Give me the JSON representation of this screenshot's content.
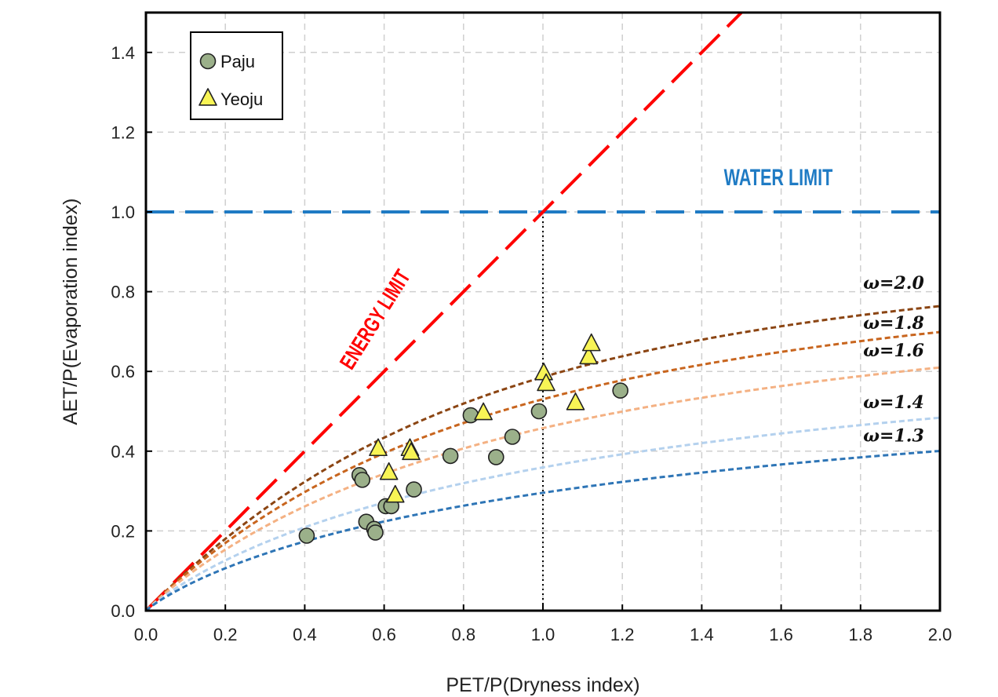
{
  "chart_data": {
    "type": "scatter",
    "xlabel": "PET/P(Dryness index)",
    "ylabel": "AET/P(Evaporation index)",
    "xlim": [
      0,
      2.0
    ],
    "ylim": [
      0,
      1.5
    ],
    "xticks": [
      "0.0",
      "0.2",
      "0.4",
      "0.6",
      "0.8",
      "1.0",
      "1.2",
      "1.4",
      "1.6",
      "1.8",
      "2.0"
    ],
    "yticks": [
      "0.0",
      "0.2",
      "0.4",
      "0.6",
      "0.8",
      "1.0",
      "1.2",
      "1.4"
    ],
    "grid": true,
    "legend_position": "top-left",
    "series": [
      {
        "name": "Paju",
        "marker": "circle",
        "color": "#9bb08a",
        "points": [
          [
            0.405,
            0.188
          ],
          [
            0.538,
            0.34
          ],
          [
            0.545,
            0.328
          ],
          [
            0.555,
            0.223
          ],
          [
            0.575,
            0.205
          ],
          [
            0.578,
            0.196
          ],
          [
            0.604,
            0.262
          ],
          [
            0.618,
            0.262
          ],
          [
            0.675,
            0.304
          ],
          [
            0.767,
            0.388
          ],
          [
            0.818,
            0.49
          ],
          [
            0.882,
            0.385
          ],
          [
            0.923,
            0.436
          ],
          [
            0.99,
            0.5
          ],
          [
            1.195,
            0.552
          ]
        ]
      },
      {
        "name": "Yeoju",
        "marker": "triangle",
        "color": "#f8f455",
        "points": [
          [
            0.585,
            0.405
          ],
          [
            0.612,
            0.345
          ],
          [
            0.628,
            0.288
          ],
          [
            0.665,
            0.405
          ],
          [
            0.668,
            0.395
          ],
          [
            0.85,
            0.495
          ],
          [
            1.002,
            0.595
          ],
          [
            1.008,
            0.568
          ],
          [
            1.082,
            0.52
          ],
          [
            1.115,
            0.635
          ],
          [
            1.122,
            0.668
          ]
        ]
      }
    ],
    "curves": [
      {
        "omega": 2.0,
        "label": "ω=2.0",
        "color": "#8b4513"
      },
      {
        "omega": 1.8,
        "label": "ω=1.8",
        "color": "#c8651e"
      },
      {
        "omega": 1.6,
        "label": "ω=1.6",
        "color": "#f4b183"
      },
      {
        "omega": 1.4,
        "label": "ω=1.4",
        "color": "#b4d1ee"
      },
      {
        "omega": 1.3,
        "label": "ω=1.3",
        "color": "#2e75b6"
      }
    ],
    "energy_limit": {
      "label": "ENERGY LIMIT",
      "color": "#ff0000"
    },
    "water_limit": {
      "label": "WATER LIMIT",
      "value": 1.0,
      "color": "#1f7bc4"
    },
    "reference_x": 1.0
  }
}
